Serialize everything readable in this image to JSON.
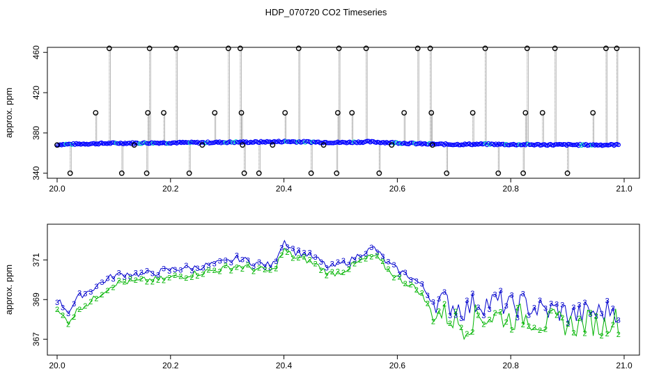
{
  "title": "HDP_070720  CO2 Timeseries",
  "colors": {
    "series_3": "#0000cc",
    "series_2": "#00b400",
    "outlier_marker": "#000000",
    "drop_lines": "#888888",
    "upper_points": "#0000ff",
    "upper_points_alt": "#00c8c8"
  },
  "chart_data": [
    {
      "type": "scatter",
      "ylabel": "approx. ppm",
      "xlabel": "",
      "xlim": [
        20.0,
        21.0
      ],
      "ylim": [
        335,
        465
      ],
      "x_ticks": [
        20.0,
        20.2,
        20.4,
        20.6,
        20.8,
        21.0
      ],
      "x_tick_labels": [
        "20.0",
        "20.2",
        "20.4",
        "20.6",
        "20.8",
        "21.0"
      ],
      "y_ticks": [
        340,
        380,
        420,
        460
      ],
      "y_tick_labels": [
        "340",
        "380",
        "420",
        "460"
      ],
      "baseline_series": {
        "x": [
          20.0,
          20.05,
          20.1,
          20.15,
          20.2,
          20.25,
          20.3,
          20.35,
          20.4,
          20.45,
          20.5,
          20.55,
          20.6,
          20.65,
          20.7,
          20.75,
          20.8,
          20.85,
          20.9,
          20.95,
          20.99
        ],
        "y": [
          368.5,
          369.2,
          369.8,
          370.0,
          370.3,
          370.4,
          370.8,
          370.9,
          371.5,
          371.0,
          370.5,
          371.2,
          370.2,
          369.0,
          368.6,
          368.9,
          368.5,
          368.3,
          368.2,
          368.1,
          368.2
        ]
      },
      "outliers": [
        {
          "x": 20.0,
          "y": 368
        },
        {
          "x": 20.023,
          "y": 340
        },
        {
          "x": 20.068,
          "y": 400
        },
        {
          "x": 20.092,
          "y": 464
        },
        {
          "x": 20.114,
          "y": 340
        },
        {
          "x": 20.136,
          "y": 368
        },
        {
          "x": 20.158,
          "y": 340
        },
        {
          "x": 20.16,
          "y": 400
        },
        {
          "x": 20.163,
          "y": 464
        },
        {
          "x": 20.188,
          "y": 400
        },
        {
          "x": 20.21,
          "y": 464
        },
        {
          "x": 20.233,
          "y": 340
        },
        {
          "x": 20.256,
          "y": 368
        },
        {
          "x": 20.278,
          "y": 400
        },
        {
          "x": 20.302,
          "y": 464
        },
        {
          "x": 20.323,
          "y": 464
        },
        {
          "x": 20.325,
          "y": 400
        },
        {
          "x": 20.327,
          "y": 368
        },
        {
          "x": 20.33,
          "y": 340
        },
        {
          "x": 20.356,
          "y": 340
        },
        {
          "x": 20.38,
          "y": 368
        },
        {
          "x": 20.402,
          "y": 400
        },
        {
          "x": 20.426,
          "y": 464
        },
        {
          "x": 20.448,
          "y": 340
        },
        {
          "x": 20.47,
          "y": 368
        },
        {
          "x": 20.493,
          "y": 340
        },
        {
          "x": 20.495,
          "y": 400
        },
        {
          "x": 20.497,
          "y": 464
        },
        {
          "x": 20.52,
          "y": 400
        },
        {
          "x": 20.545,
          "y": 464
        },
        {
          "x": 20.568,
          "y": 340
        },
        {
          "x": 20.59,
          "y": 368
        },
        {
          "x": 20.612,
          "y": 400
        },
        {
          "x": 20.636,
          "y": 464
        },
        {
          "x": 20.658,
          "y": 464
        },
        {
          "x": 20.66,
          "y": 400
        },
        {
          "x": 20.662,
          "y": 368
        },
        {
          "x": 20.687,
          "y": 340
        },
        {
          "x": 20.733,
          "y": 400
        },
        {
          "x": 20.755,
          "y": 464
        },
        {
          "x": 20.778,
          "y": 340
        },
        {
          "x": 20.822,
          "y": 340
        },
        {
          "x": 20.826,
          "y": 400
        },
        {
          "x": 20.829,
          "y": 464
        },
        {
          "x": 20.856,
          "y": 400
        },
        {
          "x": 20.878,
          "y": 464
        },
        {
          "x": 20.9,
          "y": 340
        },
        {
          "x": 20.945,
          "y": 400
        },
        {
          "x": 20.968,
          "y": 464
        },
        {
          "x": 20.987,
          "y": 464
        }
      ]
    },
    {
      "type": "line",
      "ylabel": "approx. ppm",
      "xlabel": "",
      "xlim": [
        20.0,
        21.0
      ],
      "ylim": [
        366.2,
        372.8
      ],
      "x_ticks": [
        20.0,
        20.2,
        20.4,
        20.6,
        20.8,
        21.0
      ],
      "x_tick_labels": [
        "20.0",
        "20.2",
        "20.4",
        "20.6",
        "20.8",
        "21.0"
      ],
      "y_ticks": [
        367,
        369,
        371
      ],
      "y_tick_labels": [
        "367",
        "369",
        "371"
      ],
      "point_symbol_series_3": "3",
      "point_symbol_series_2": "2",
      "series": [
        {
          "x": [
            20.0,
            20.02,
            20.04,
            20.06,
            20.08,
            20.1,
            20.12,
            20.14,
            20.16,
            20.18,
            20.2,
            20.22,
            20.24,
            20.26,
            20.28,
            20.3,
            20.32,
            20.34,
            20.36,
            20.38,
            20.4,
            20.41,
            20.42,
            20.44,
            20.46,
            20.48,
            20.5,
            20.52,
            20.54,
            20.56,
            20.58,
            20.6,
            20.62,
            20.64,
            20.66,
            20.68,
            20.7,
            20.72,
            20.74,
            20.76,
            20.78,
            20.8,
            20.82,
            20.84,
            20.86,
            20.88,
            20.9,
            20.92,
            20.94,
            20.96,
            20.98,
            20.99
          ],
          "values": [
            369.0,
            368.4,
            369.2,
            369.5,
            369.9,
            370.2,
            370.3,
            370.3,
            370.3,
            370.4,
            370.5,
            370.6,
            370.6,
            370.7,
            370.8,
            370.9,
            371.1,
            370.9,
            370.8,
            370.7,
            372.0,
            371.7,
            371.4,
            371.3,
            371.0,
            370.6,
            370.8,
            371.0,
            371.4,
            371.6,
            370.9,
            370.5,
            370.2,
            369.8,
            369.0,
            368.9,
            368.7,
            368.5,
            368.9,
            368.8,
            368.9,
            368.6,
            368.8,
            368.6,
            368.4,
            368.5,
            368.3,
            368.2,
            368.4,
            368.3,
            368.6,
            368.4
          ]
        },
        {
          "x": [
            20.0,
            20.02,
            20.04,
            20.06,
            20.08,
            20.1,
            20.12,
            20.14,
            20.16,
            20.18,
            20.2,
            20.22,
            20.24,
            20.26,
            20.28,
            20.3,
            20.32,
            20.34,
            20.36,
            20.38,
            20.4,
            20.41,
            20.42,
            20.44,
            20.46,
            20.48,
            20.5,
            20.52,
            20.54,
            20.56,
            20.58,
            20.6,
            20.62,
            20.64,
            20.66,
            20.68,
            20.7,
            20.72,
            20.74,
            20.76,
            20.78,
            20.8,
            20.82,
            20.84,
            20.86,
            20.88,
            20.9,
            20.92,
            20.94,
            20.96,
            20.98,
            20.99
          ],
          "values": [
            368.4,
            367.9,
            368.6,
            368.9,
            369.4,
            369.8,
            369.9,
            369.9,
            370.0,
            370.0,
            370.1,
            370.2,
            370.3,
            370.4,
            370.5,
            370.6,
            370.7,
            370.6,
            370.5,
            370.4,
            371.5,
            371.3,
            371.1,
            371.0,
            370.7,
            370.3,
            370.4,
            370.7,
            371.0,
            371.2,
            370.6,
            370.1,
            369.8,
            369.4,
            368.4,
            368.3,
            368.0,
            367.6,
            368.2,
            368.1,
            368.2,
            368.0,
            368.2,
            368.0,
            367.8,
            367.9,
            367.8,
            367.7,
            367.9,
            367.6,
            368.1,
            367.9
          ]
        }
      ]
    }
  ]
}
